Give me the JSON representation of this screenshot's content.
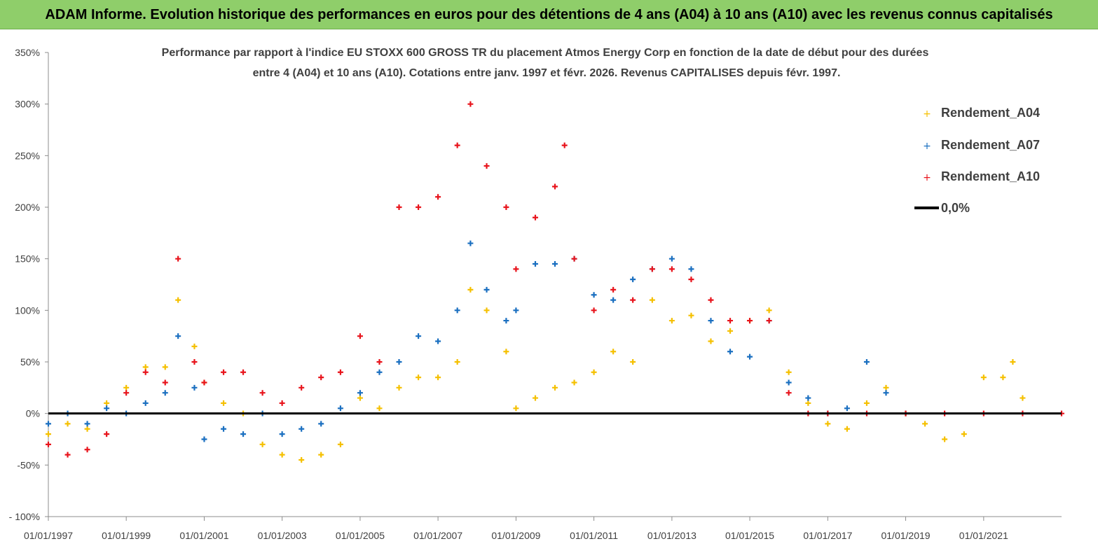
{
  "banner_title": "ADAM Informe. Evolution historique des performances en euros pour des détentions de 4 ans (A04) à 10 ans (A10) avec les revenus connus capitalisés",
  "colors": {
    "banner": "#8fce6a",
    "A04": "#f5c000",
    "A07": "#1a6fc0",
    "A10": "#e8141c",
    "zero_line": "#000000"
  },
  "chart_data": {
    "type": "scatter",
    "title": "Performance par rapport à l'indice EU STOXX 600 GROSS TR  du placement Atmos Energy Corp en fonction de la date de début pour des durées entre 4 (A04) et 10 ans (A10).  Cotations entre janv. 1997 et févr. 2026. Revenus CAPITALISES depuis févr. 1997.",
    "title_lines": [
      "Performance par rapport à l'indice EU STOXX 600 GROSS TR  du placement Atmos Energy Corp en fonction de la date de début pour des durées",
      "entre 4 (A04) et 10 ans (A10).  Cotations entre janv. 1997 et févr. 2026. Revenus CAPITALISES depuis févr. 1997."
    ],
    "xlabel": "",
    "ylabel": "",
    "xlim": [
      "1997-01-01",
      "2023-01-01"
    ],
    "ylim": [
      -100,
      350
    ],
    "y_unit": "%",
    "y_ticks": [
      -100,
      -50,
      0,
      50,
      100,
      150,
      200,
      250,
      300,
      350
    ],
    "y_tick_labels": [
      "- 100%",
      "-50%",
      "0%",
      "50%",
      "100%",
      "150%",
      "200%",
      "250%",
      "300%",
      "350%"
    ],
    "x_ticks": [
      "01/01/1997",
      "01/01/1999",
      "01/01/2001",
      "01/01/2003",
      "01/01/2005",
      "01/01/2007",
      "01/01/2009",
      "01/01/2011",
      "01/01/2013",
      "01/01/2015",
      "01/01/2017",
      "01/01/2019",
      "01/01/2021"
    ],
    "grid": false,
    "legend_position": "top-right",
    "legend": [
      "Rendement_A04",
      "Rendement_A07",
      "Rendement_A10",
      "0,0%"
    ],
    "reference_line": {
      "name": "0,0%",
      "y": 0
    },
    "series": [
      {
        "name": "Rendement_A04",
        "color": "#f5c000",
        "x": [
          "1997-01-01",
          "1997-07-01",
          "1998-01-01",
          "1998-07-01",
          "1999-01-01",
          "1999-07-01",
          "2000-01-01",
          "2000-05-01",
          "2000-10-01",
          "2001-01-01",
          "2001-07-01",
          "2002-01-01",
          "2002-07-01",
          "2003-01-01",
          "2003-07-01",
          "2004-01-01",
          "2004-07-01",
          "2005-01-01",
          "2005-07-01",
          "2006-01-01",
          "2006-07-01",
          "2007-01-01",
          "2007-07-01",
          "2007-11-01",
          "2008-04-01",
          "2008-10-01",
          "2009-01-01",
          "2009-07-01",
          "2010-01-01",
          "2010-07-01",
          "2011-01-01",
          "2011-07-01",
          "2012-01-01",
          "2012-07-01",
          "2013-01-01",
          "2013-07-01",
          "2014-01-01",
          "2014-07-01",
          "2015-01-01",
          "2015-07-01",
          "2016-01-01",
          "2016-07-01",
          "2017-01-01",
          "2017-07-01",
          "2018-01-01",
          "2018-07-01",
          "2019-01-01",
          "2019-07-01",
          "2020-01-01",
          "2020-07-01",
          "2021-01-01",
          "2021-07-01",
          "2021-10-01",
          "2022-01-01"
        ],
        "values": [
          -20,
          -10,
          -15,
          10,
          25,
          45,
          45,
          110,
          65,
          30,
          10,
          0,
          -30,
          -40,
          -45,
          -40,
          -30,
          15,
          5,
          25,
          35,
          35,
          50,
          120,
          100,
          60,
          5,
          15,
          25,
          30,
          40,
          60,
          50,
          110,
          90,
          95,
          70,
          80,
          90,
          100,
          40,
          10,
          -10,
          -15,
          10,
          25,
          0,
          -10,
          -25,
          -20,
          35,
          35,
          50,
          15
        ]
      },
      {
        "name": "Rendement_A07",
        "color": "#1a6fc0",
        "x": [
          "1997-01-01",
          "1997-07-01",
          "1998-01-01",
          "1998-07-01",
          "1999-01-01",
          "1999-07-01",
          "2000-01-01",
          "2000-05-01",
          "2000-10-01",
          "2001-01-01",
          "2001-07-01",
          "2002-01-01",
          "2002-07-01",
          "2003-01-01",
          "2003-07-01",
          "2004-01-01",
          "2004-07-01",
          "2005-01-01",
          "2005-07-01",
          "2006-01-01",
          "2006-07-01",
          "2007-01-01",
          "2007-07-01",
          "2007-11-01",
          "2008-04-01",
          "2008-10-01",
          "2009-01-01",
          "2009-07-01",
          "2010-01-01",
          "2010-07-01",
          "2011-01-01",
          "2011-07-01",
          "2012-01-01",
          "2012-07-01",
          "2013-01-01",
          "2013-07-01",
          "2014-01-01",
          "2014-07-01",
          "2015-01-01",
          "2015-07-01",
          "2016-01-01",
          "2016-07-01",
          "2017-01-01",
          "2017-07-01",
          "2018-01-01",
          "2018-07-01",
          "2019-01-01"
        ],
        "values": [
          -10,
          0,
          -10,
          5,
          0,
          10,
          20,
          75,
          25,
          -25,
          -15,
          -20,
          0,
          -20,
          -15,
          -10,
          5,
          20,
          40,
          50,
          75,
          70,
          100,
          165,
          120,
          90,
          100,
          145,
          145,
          150,
          115,
          110,
          130,
          140,
          150,
          140,
          90,
          60,
          55,
          90,
          30,
          15,
          0,
          5,
          50,
          20,
          0
        ]
      },
      {
        "name": "Rendement_A10",
        "color": "#e8141c",
        "x": [
          "1997-01-01",
          "1997-07-01",
          "1998-01-01",
          "1998-07-01",
          "1999-01-01",
          "1999-07-01",
          "2000-01-01",
          "2000-05-01",
          "2000-10-01",
          "2001-01-01",
          "2001-07-01",
          "2002-01-01",
          "2002-07-01",
          "2003-01-01",
          "2003-07-01",
          "2004-01-01",
          "2004-07-01",
          "2005-01-01",
          "2005-07-01",
          "2006-01-01",
          "2006-07-01",
          "2007-01-01",
          "2007-07-01",
          "2007-11-01",
          "2008-04-01",
          "2008-10-01",
          "2009-01-01",
          "2009-07-01",
          "2010-01-01",
          "2010-04-01",
          "2010-07-01",
          "2011-01-01",
          "2011-07-01",
          "2012-01-01",
          "2012-07-01",
          "2013-01-01",
          "2013-07-01",
          "2014-01-01",
          "2014-07-01",
          "2015-01-01",
          "2015-07-01",
          "2016-01-01",
          "2016-07-01",
          "2017-01-01",
          "2018-01-01",
          "2019-01-01",
          "2020-01-01",
          "2021-01-01",
          "2022-01-01",
          "2023-01-01"
        ],
        "values": [
          -30,
          -40,
          -35,
          -20,
          20,
          40,
          30,
          150,
          50,
          30,
          40,
          40,
          20,
          10,
          25,
          35,
          40,
          75,
          50,
          200,
          200,
          210,
          260,
          300,
          240,
          200,
          140,
          190,
          220,
          260,
          150,
          100,
          120,
          110,
          140,
          140,
          130,
          110,
          90,
          90,
          90,
          20,
          0,
          0,
          0,
          0,
          0,
          0,
          0,
          0
        ]
      }
    ]
  }
}
